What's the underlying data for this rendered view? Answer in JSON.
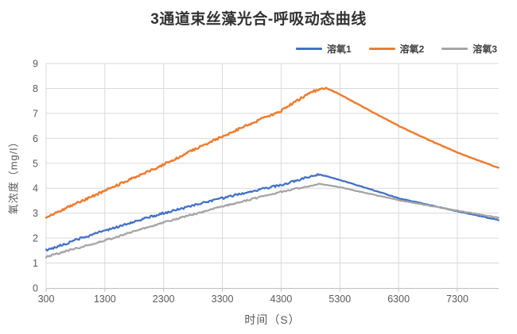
{
  "title": "3通道束丝藻光合-呼吸动态曲线",
  "legend": {
    "items": [
      {
        "label": "溶氧1",
        "color": "#4472C4"
      },
      {
        "label": "溶氧2",
        "color": "#ED7D31"
      },
      {
        "label": "溶氧3",
        "color": "#A5A5A5"
      }
    ]
  },
  "axes": {
    "x": {
      "label": "时间（S）",
      "ticks": [
        300,
        1300,
        2300,
        3300,
        4300,
        5300,
        6300,
        7300
      ]
    },
    "y": {
      "label": "氧浓度（mg/l）",
      "ticks": [
        0,
        1,
        2,
        3,
        4,
        5,
        6,
        7,
        8,
        9
      ]
    }
  },
  "colors": {
    "grid": "#D9D9D9",
    "axis": "#BFBFBF",
    "tick_text": "#595959",
    "series_blue": "#4472C4",
    "series_orange": "#ED7D31",
    "series_gray": "#A5A5A5"
  },
  "chart_data": {
    "type": "line",
    "title": "3通道束丝藻光合-呼吸动态曲线",
    "xlabel": "时间（S）",
    "ylabel": "氧浓度（mg/l）",
    "xlim": [
      300,
      8000
    ],
    "ylim": [
      0,
      9
    ],
    "grid": true,
    "legend_position": "top-right",
    "x_ticks": [
      300,
      1300,
      2300,
      3300,
      4300,
      5300,
      6300,
      7300
    ],
    "y_ticks": [
      0,
      1,
      2,
      3,
      4,
      5,
      6,
      7,
      8,
      9
    ],
    "series": [
      {
        "name": "溶氧1",
        "color": "#4472C4",
        "peak_t": 4950,
        "noise_rise": 0.045,
        "noise_fall": 0.012,
        "points": [
          [
            300,
            1.5
          ],
          [
            800,
            1.92
          ],
          [
            1300,
            2.3
          ],
          [
            1800,
            2.66
          ],
          [
            2300,
            3.0
          ],
          [
            2800,
            3.3
          ],
          [
            3300,
            3.6
          ],
          [
            3800,
            3.87
          ],
          [
            4300,
            4.13
          ],
          [
            4600,
            4.32
          ],
          [
            4850,
            4.5
          ],
          [
            4950,
            4.55
          ],
          [
            5100,
            4.46
          ],
          [
            5300,
            4.33
          ],
          [
            5800,
            3.97
          ],
          [
            6300,
            3.6
          ],
          [
            6800,
            3.34
          ],
          [
            7300,
            3.08
          ],
          [
            7650,
            2.9
          ],
          [
            8000,
            2.72
          ]
        ]
      },
      {
        "name": "溶氧2",
        "color": "#ED7D31",
        "peak_t": 5050,
        "noise_rise": 0.045,
        "noise_fall": 0.012,
        "points": [
          [
            300,
            2.85
          ],
          [
            800,
            3.37
          ],
          [
            1300,
            3.9
          ],
          [
            1800,
            4.42
          ],
          [
            2300,
            4.95
          ],
          [
            2800,
            5.52
          ],
          [
            3300,
            6.08
          ],
          [
            3800,
            6.6
          ],
          [
            4300,
            7.1
          ],
          [
            4600,
            7.55
          ],
          [
            4800,
            7.82
          ],
          [
            4950,
            7.98
          ],
          [
            5050,
            8.02
          ],
          [
            5150,
            7.93
          ],
          [
            5300,
            7.76
          ],
          [
            5800,
            7.12
          ],
          [
            6300,
            6.5
          ],
          [
            6800,
            5.95
          ],
          [
            7300,
            5.43
          ],
          [
            7650,
            5.12
          ],
          [
            8000,
            4.82
          ]
        ]
      },
      {
        "name": "溶氧3",
        "color": "#A5A5A5",
        "peak_t": 4950,
        "noise_rise": 0.03,
        "noise_fall": 0.01,
        "points": [
          [
            300,
            1.25
          ],
          [
            800,
            1.58
          ],
          [
            1300,
            1.9
          ],
          [
            1800,
            2.27
          ],
          [
            2300,
            2.63
          ],
          [
            2800,
            2.95
          ],
          [
            3300,
            3.27
          ],
          [
            3800,
            3.56
          ],
          [
            4300,
            3.85
          ],
          [
            4700,
            4.05
          ],
          [
            4950,
            4.17
          ],
          [
            5100,
            4.12
          ],
          [
            5300,
            4.04
          ],
          [
            5800,
            3.78
          ],
          [
            6300,
            3.52
          ],
          [
            6800,
            3.31
          ],
          [
            7300,
            3.1
          ],
          [
            7650,
            2.96
          ],
          [
            8000,
            2.82
          ]
        ]
      }
    ]
  }
}
